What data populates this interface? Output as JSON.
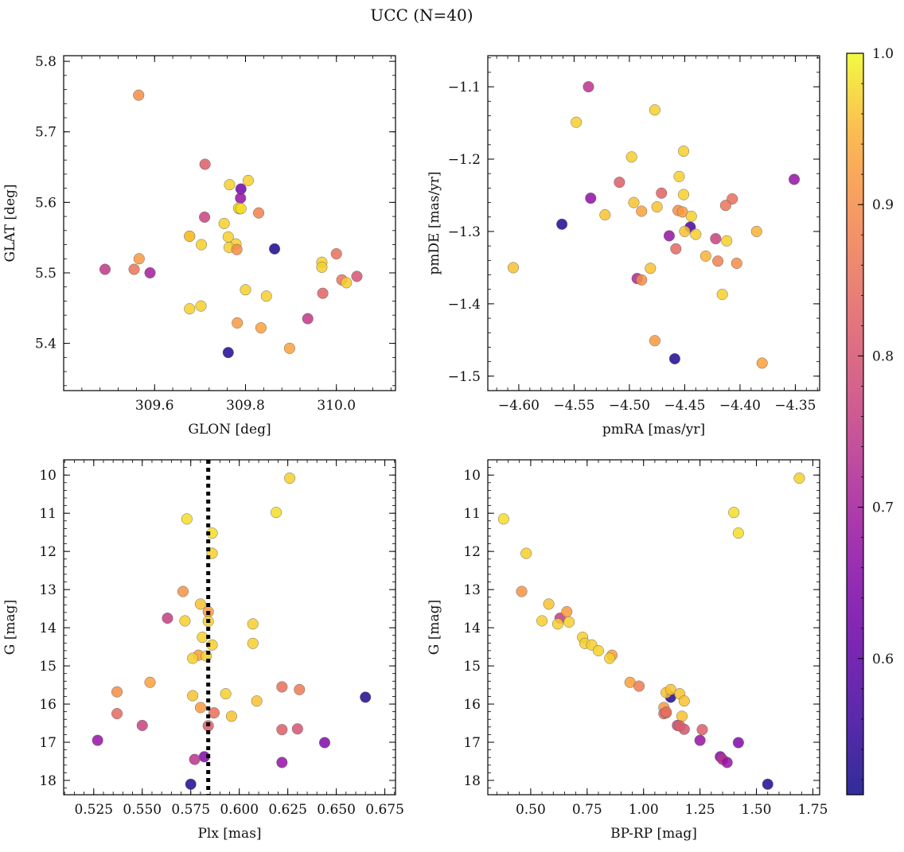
{
  "figure": {
    "title": "UCC (N=40)"
  },
  "colorbar": {
    "range": [
      0.51,
      1.0
    ],
    "ticks": [
      0.6,
      0.7,
      0.8,
      0.9,
      1.0
    ],
    "tick_labels": [
      "0.6",
      "0.7",
      "0.8",
      "0.9",
      "1.0"
    ],
    "colormap": "plasma"
  },
  "chart_data": [
    {
      "type": "scatter",
      "xlabel": "GLON [deg]",
      "ylabel": "GLAT [deg]",
      "xlim": [
        309.4,
        310.13
      ],
      "ylim": [
        5.333,
        5.808
      ],
      "y_inverted": false,
      "xticks": [
        309.6,
        309.8,
        310.0
      ],
      "xtick_labels": [
        "309.6",
        "309.8",
        "310.0"
      ],
      "yticks": [
        5.4,
        5.5,
        5.6,
        5.7,
        5.8
      ],
      "ytick_labels": [
        "5.4",
        "5.5",
        "5.6",
        "5.7",
        "5.8"
      ],
      "x": [
        309.565,
        309.711,
        309.79,
        309.806,
        309.765,
        309.786,
        309.789,
        309.785,
        309.829,
        309.71,
        309.753,
        309.677,
        309.677,
        309.703,
        309.762,
        309.779,
        309.764,
        309.781,
        309.864,
        309.566,
        309.491,
        309.555,
        309.59,
        309.968,
        310.0,
        310.045,
        310.012,
        309.968,
        310.022,
        309.8,
        309.677,
        309.702,
        309.846,
        309.937,
        309.97,
        309.782,
        309.834,
        309.897,
        309.762,
        309.79
      ],
      "y": [
        5.752,
        5.654,
        5.619,
        5.631,
        5.625,
        5.591,
        5.606,
        5.592,
        5.585,
        5.579,
        5.57,
        5.552,
        5.552,
        5.54,
        5.551,
        5.541,
        5.536,
        5.533,
        5.534,
        5.52,
        5.505,
        5.505,
        5.5,
        5.515,
        5.527,
        5.495,
        5.49,
        5.508,
        5.486,
        5.476,
        5.449,
        5.453,
        5.467,
        5.435,
        5.471,
        5.429,
        5.422,
        5.393,
        5.387,
        5.591
      ],
      "c": [
        0.9,
        0.82,
        0.63,
        0.97,
        0.97,
        0.98,
        0.68,
        0.98,
        0.88,
        0.77,
        0.97,
        0.96,
        0.96,
        0.97,
        0.97,
        0.97,
        0.97,
        0.9,
        0.52,
        0.92,
        0.75,
        0.86,
        0.7,
        0.97,
        0.85,
        0.8,
        0.86,
        0.97,
        0.97,
        0.97,
        0.97,
        0.97,
        0.97,
        0.75,
        0.83,
        0.92,
        0.93,
        0.93,
        0.53,
        0.98
      ]
    },
    {
      "type": "scatter",
      "xlabel": "pmRA [mas/yr]",
      "ylabel": "pmDE [mas/yr]",
      "xlim": [
        -4.628,
        -4.328
      ],
      "ylim": [
        -1.52,
        -1.057
      ],
      "y_inverted": false,
      "xticks": [
        -4.6,
        -4.55,
        -4.5,
        -4.45,
        -4.4,
        -4.35
      ],
      "xtick_labels": [
        "−4.60",
        "−4.55",
        "−4.50",
        "−4.45",
        "−4.40",
        "−4.35"
      ],
      "yticks": [
        -1.5,
        -1.4,
        -1.3,
        -1.2,
        -1.1
      ],
      "ytick_labels": [
        "−1.5",
        "−1.4",
        "−1.3",
        "−1.2",
        "−1.1"
      ],
      "x": [
        -4.537,
        -4.477,
        -4.548,
        -4.451,
        -4.498,
        -4.455,
        -4.351,
        -4.509,
        -4.535,
        -4.451,
        -4.471,
        -4.407,
        -4.496,
        -4.475,
        -4.413,
        -4.489,
        -4.522,
        -4.456,
        -4.452,
        -4.444,
        -4.561,
        -4.445,
        -4.385,
        -4.45,
        -4.464,
        -4.44,
        -4.422,
        -4.458,
        -4.412,
        -4.431,
        -4.42,
        -4.403,
        -4.481,
        -4.605,
        -4.493,
        -4.489,
        -4.416,
        -4.477,
        -4.459,
        -4.38
      ],
      "y": [
        -1.1,
        -1.132,
        -1.149,
        -1.189,
        -1.197,
        -1.224,
        -1.228,
        -1.232,
        -1.254,
        -1.249,
        -1.247,
        -1.255,
        -1.26,
        -1.266,
        -1.264,
        -1.272,
        -1.277,
        -1.271,
        -1.273,
        -1.279,
        -1.29,
        -1.294,
        -1.3,
        -1.3,
        -1.306,
        -1.304,
        -1.31,
        -1.324,
        -1.313,
        -1.334,
        -1.341,
        -1.344,
        -1.351,
        -1.35,
        -1.365,
        -1.367,
        -1.387,
        -1.451,
        -1.476,
        -1.482
      ],
      "c": [
        0.74,
        0.97,
        0.97,
        0.97,
        0.97,
        0.97,
        0.68,
        0.82,
        0.67,
        0.97,
        0.83,
        0.85,
        0.96,
        0.96,
        0.86,
        0.93,
        0.96,
        0.9,
        0.92,
        0.97,
        0.53,
        0.57,
        0.95,
        0.96,
        0.68,
        0.97,
        0.77,
        0.84,
        0.97,
        0.95,
        0.88,
        0.9,
        0.96,
        0.96,
        0.72,
        0.9,
        0.97,
        0.92,
        0.53,
        0.93
      ]
    },
    {
      "type": "scatter",
      "xlabel": "Plx [mas]",
      "ylabel": "G [mag]",
      "xlim": [
        0.5095,
        0.6805
      ],
      "ylim": [
        18.375,
        9.6
      ],
      "y_inverted": true,
      "vline": 0.584,
      "xticks": [
        0.525,
        0.55,
        0.575,
        0.6,
        0.625,
        0.65,
        0.675
      ],
      "xtick_labels": [
        "0.525",
        "0.550",
        "0.575",
        "0.600",
        "0.625",
        "0.650",
        "0.675"
      ],
      "yticks": [
        10,
        11,
        12,
        13,
        14,
        15,
        16,
        17,
        18
      ],
      "ytick_labels": [
        "10",
        "11",
        "12",
        "13",
        "14",
        "15",
        "16",
        "17",
        "18"
      ],
      "x": [
        0.626,
        0.619,
        0.573,
        0.586,
        0.586,
        0.571,
        0.58,
        0.563,
        0.572,
        0.584,
        0.584,
        0.607,
        0.581,
        0.586,
        0.607,
        0.579,
        0.583,
        0.576,
        0.554,
        0.537,
        0.622,
        0.631,
        0.593,
        0.665,
        0.576,
        0.609,
        0.58,
        0.537,
        0.587,
        0.596,
        0.55,
        0.584,
        0.622,
        0.63,
        0.527,
        0.644,
        0.582,
        0.577,
        0.622,
        0.575
      ],
      "y": [
        10.08,
        10.98,
        11.15,
        11.52,
        12.05,
        13.05,
        13.38,
        13.75,
        13.82,
        13.58,
        13.83,
        13.9,
        14.25,
        14.45,
        14.41,
        14.72,
        14.74,
        14.8,
        15.43,
        15.68,
        15.55,
        15.62,
        15.73,
        15.82,
        15.78,
        15.92,
        16.09,
        16.25,
        16.23,
        16.32,
        16.56,
        16.57,
        16.67,
        16.65,
        16.95,
        17.01,
        17.38,
        17.45,
        17.53,
        18.1
      ],
      "c": [
        0.97,
        0.98,
        0.98,
        0.98,
        0.97,
        0.91,
        0.96,
        0.76,
        0.97,
        0.92,
        0.97,
        0.97,
        0.97,
        0.97,
        0.97,
        0.93,
        0.97,
        0.97,
        0.93,
        0.9,
        0.85,
        0.87,
        0.97,
        0.53,
        0.96,
        0.96,
        0.92,
        0.84,
        0.85,
        0.96,
        0.77,
        0.82,
        0.82,
        0.8,
        0.68,
        0.65,
        0.65,
        0.74,
        0.68,
        0.53
      ]
    },
    {
      "type": "scatter",
      "xlabel": "BP-RP [mag]",
      "ylabel": "G [mag]",
      "xlim": [
        0.31,
        1.78
      ],
      "ylim": [
        18.375,
        9.6
      ],
      "y_inverted": true,
      "xticks": [
        0.5,
        0.75,
        1.0,
        1.25,
        1.5,
        1.75
      ],
      "xtick_labels": [
        "0.50",
        "0.75",
        "1.00",
        "1.25",
        "1.50",
        "1.75"
      ],
      "yticks": [
        10,
        11,
        12,
        13,
        14,
        15,
        16,
        17,
        18
      ],
      "ytick_labels": [
        "10",
        "11",
        "12",
        "13",
        "14",
        "15",
        "16",
        "17",
        "18"
      ],
      "x": [
        1.69,
        1.4,
        0.38,
        1.42,
        0.48,
        0.46,
        0.58,
        0.63,
        0.55,
        0.66,
        0.62,
        0.67,
        0.73,
        0.74,
        0.77,
        0.86,
        0.8,
        0.85,
        0.94,
        0.98,
        1.09,
        1.12,
        1.1,
        1.12,
        1.16,
        1.18,
        1.09,
        1.1,
        1.1,
        1.17,
        1.15,
        1.18,
        1.16,
        1.26,
        1.25,
        1.42,
        1.34,
        1.35,
        1.37,
        1.55
      ],
      "y": [
        10.08,
        10.98,
        11.15,
        11.52,
        12.05,
        13.05,
        13.38,
        13.75,
        13.82,
        13.58,
        13.9,
        13.85,
        14.25,
        14.41,
        14.45,
        14.72,
        14.6,
        14.8,
        15.43,
        15.53,
        16.09,
        15.82,
        15.7,
        15.62,
        15.73,
        15.92,
        16.25,
        16.23,
        16.21,
        16.32,
        16.56,
        16.66,
        16.57,
        16.67,
        16.95,
        17.01,
        17.38,
        17.45,
        17.53,
        18.1
      ],
      "c": [
        0.97,
        0.98,
        0.98,
        0.98,
        0.97,
        0.91,
        0.96,
        0.76,
        0.97,
        0.92,
        0.97,
        0.97,
        0.97,
        0.97,
        0.97,
        0.93,
        0.97,
        0.97,
        0.93,
        0.87,
        0.92,
        0.53,
        0.96,
        0.96,
        0.96,
        0.96,
        0.84,
        0.85,
        0.85,
        0.96,
        0.77,
        0.8,
        0.82,
        0.82,
        0.68,
        0.65,
        0.65,
        0.74,
        0.68,
        0.53
      ]
    }
  ]
}
